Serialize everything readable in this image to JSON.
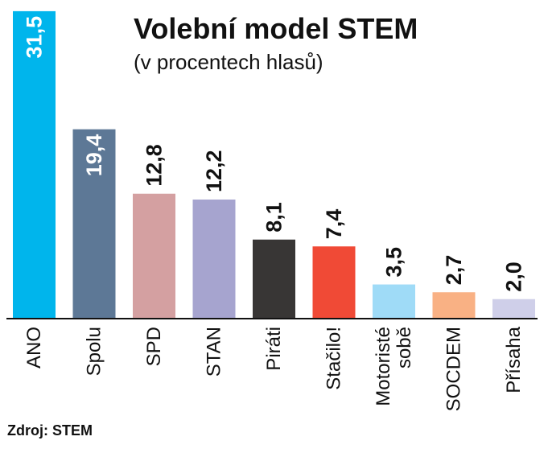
{
  "chart_data": {
    "type": "bar",
    "title": "Volební model STEM",
    "subtitle": "(v procentech hlasů)",
    "source": "Zdroj: STEM",
    "xlabel": "",
    "ylabel": "",
    "ylim": [
      0,
      31.5
    ],
    "grid": false,
    "legend": "none",
    "bars": [
      {
        "category": [
          "ANO"
        ],
        "value": 31.5,
        "label": "31,5",
        "color": "#00b5ec"
      },
      {
        "category": [
          "Spolu"
        ],
        "value": 19.4,
        "label": "19,4",
        "color": "#5d7896"
      },
      {
        "category": [
          "SPD"
        ],
        "value": 12.8,
        "label": "12,8",
        "color": "#d4a0a1"
      },
      {
        "category": [
          "STAN"
        ],
        "value": 12.2,
        "label": "12,2",
        "color": "#a6a4cf"
      },
      {
        "category": [
          "Piráti"
        ],
        "value": 8.1,
        "label": "8,1",
        "color": "#383635"
      },
      {
        "category": [
          "Stačilo!"
        ],
        "value": 7.4,
        "label": "7,4",
        "color": "#f04a36"
      },
      {
        "category": [
          "Motoristé",
          "sobě"
        ],
        "value": 3.5,
        "label": "3,5",
        "color": "#9fdbf7"
      },
      {
        "category": [
          "SOCDEM"
        ],
        "value": 2.7,
        "label": "2,7",
        "color": "#f9b184"
      },
      {
        "category": [
          "Přísaha"
        ],
        "value": 2.0,
        "label": "2,0",
        "color": "#cfcfe9"
      }
    ]
  }
}
